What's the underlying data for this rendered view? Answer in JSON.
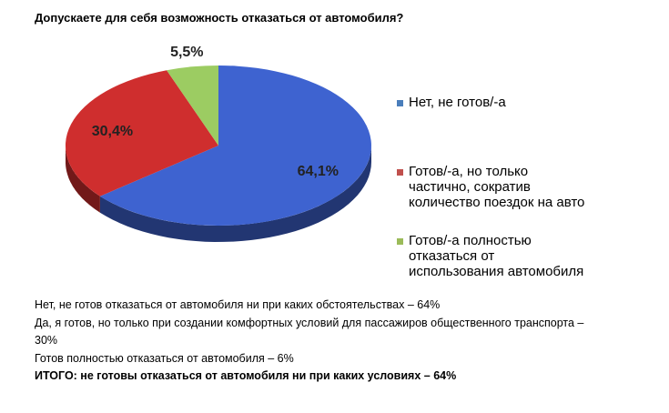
{
  "title": "Допускаете для себя возможность отказаться от автомобиля?",
  "chart_data": {
    "type": "pie",
    "title": "Допускаете для себя возможность отказаться от автомобиля?",
    "style": "3d",
    "labels": [
      "Нет, не готов/-а",
      "Готов/-а, но только частично, сократив количество поездок на авто",
      "Готов/-а полностью отказаться от использования автомобиля"
    ],
    "values": [
      64.1,
      30.4,
      5.5
    ],
    "data_labels": [
      "64,1%",
      "30,4%",
      "5,5%"
    ],
    "colors": [
      "#3e63d0",
      "#cf2e2e",
      "#9ccc62"
    ],
    "legend_position": "right"
  },
  "legend": [
    {
      "label": "Нет, не готов/-а",
      "color": "#4a7ebb"
    },
    {
      "label": "Готов/-а, но только\nчастично, сократив\nколичество поездок на авто",
      "color": "#c0504d"
    },
    {
      "label": "Готов/-а полностью\nотказаться от\nиспользования автомобиля",
      "color": "#9bbb59"
    }
  ],
  "notes": [
    "Нет, не готов отказаться от автомобиля ни при каких обстоятельствах – 64%",
    "Да, я готов, но только при создании комфортных условий для пассажиров общественного транспорта –",
    "30%",
    "Готов полностью отказаться от автомобиля – 6%",
    "ИТОГО: не готовы отказаться от автомобиля ни при каких условиях – 64%"
  ]
}
